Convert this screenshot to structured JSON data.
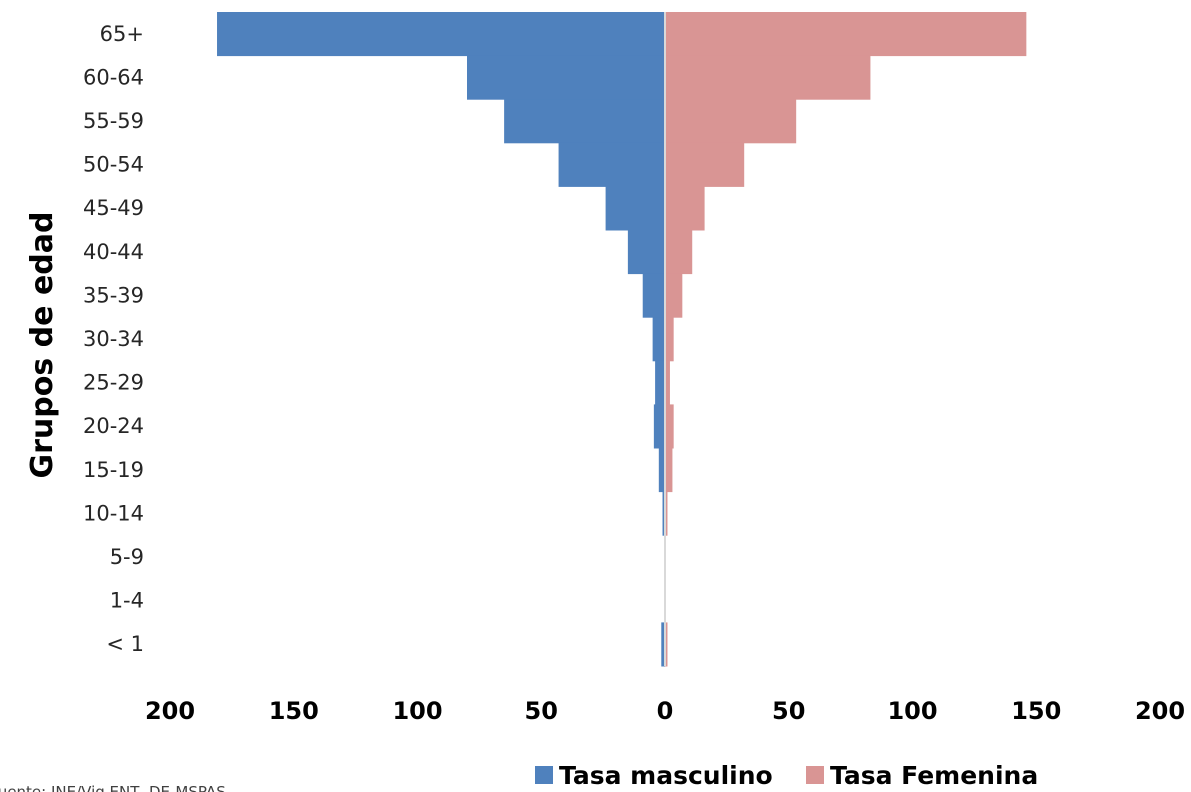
{
  "chart_data": {
    "type": "bar",
    "orientation": "horizontal",
    "layout": "population-pyramid",
    "ylabel": "Grupos de edad",
    "xlabel": "",
    "categories": [
      "65+",
      "60-64",
      "55-59",
      "50-54",
      "45-49",
      "40-44",
      "35-39",
      "30-34",
      "25-29",
      "20-24",
      "15-19",
      "10-14",
      "5-9",
      "1-4",
      "< 1"
    ],
    "series": [
      {
        "name": "Tasa masculino",
        "color": "#4f81bd",
        "direction": "left",
        "values": [
          181,
          80,
          65,
          43,
          24,
          15,
          9,
          5,
          4,
          4.5,
          2.5,
          1,
          0,
          0,
          1.5
        ]
      },
      {
        "name": "Tasa Femenina",
        "color": "#d99594",
        "direction": "right",
        "values": [
          146,
          83,
          53,
          32,
          16,
          11,
          7,
          3.5,
          2,
          3.5,
          3,
          1,
          0,
          0,
          1
        ]
      }
    ],
    "xlim": [
      -200,
      200
    ],
    "xticks": [
      -200,
      -150,
      -100,
      -50,
      0,
      50,
      100,
      150,
      200
    ],
    "xtick_labels": [
      "200",
      "150",
      "100",
      "50",
      "0",
      "50",
      "100",
      "150",
      "200"
    ],
    "grid": false,
    "legend_position": "bottom"
  },
  "source_note": "Fuente: INE/Vig ENT, DE-MSPAS"
}
